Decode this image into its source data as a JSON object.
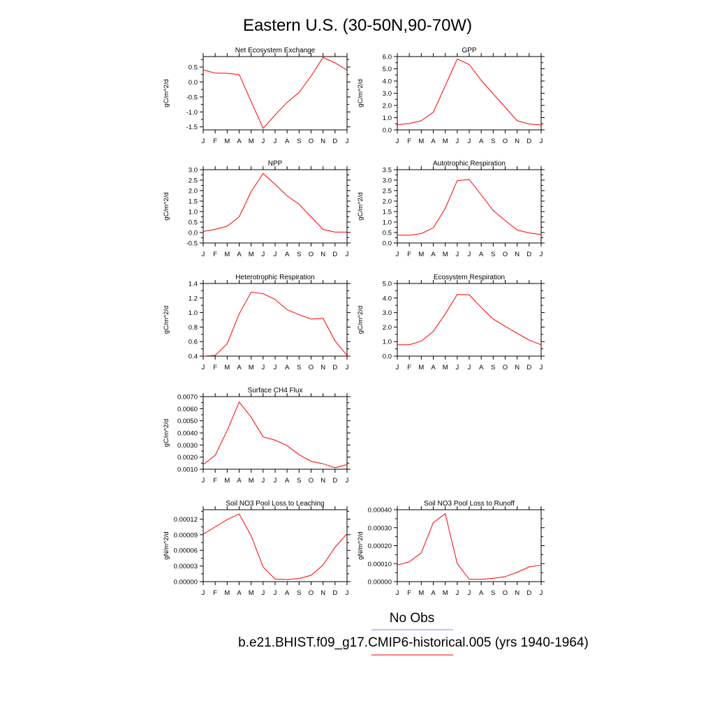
{
  "page": {
    "title": "Eastern U.S. (30-50N,90-70W)"
  },
  "legend": [
    {
      "label": "No Obs",
      "color": "#8080ff"
    },
    {
      "label": "b.e21.BHIST.f09_g17.CMIP6-historical.005 (yrs 1940-1964)",
      "color": "#ff0000"
    }
  ],
  "chart_data": [
    {
      "type": "line",
      "title": "Net Ecosystem Exchange",
      "ylabel": "gC/m^2/d",
      "categories": [
        "J",
        "F",
        "M",
        "A",
        "M",
        "J",
        "J",
        "A",
        "S",
        "O",
        "N",
        "D",
        "J"
      ],
      "ylim": [
        -1.6,
        0.85
      ],
      "yticks": [
        "0.5",
        "0.0",
        "-0.5",
        "-1.0",
        "-1.5"
      ],
      "yticks_values": [
        0.5,
        0.0,
        -0.5,
        -1.0,
        -1.5
      ],
      "series": [
        {
          "color": "#ff0000",
          "values": [
            0.4,
            0.3,
            0.29,
            0.25,
            -0.65,
            -1.55,
            -1.1,
            -0.68,
            -0.35,
            0.2,
            0.82,
            0.64,
            0.4
          ]
        }
      ]
    },
    {
      "type": "line",
      "title": "GPP",
      "ylabel": "gC/m^2/d",
      "categories": [
        "J",
        "F",
        "M",
        "A",
        "M",
        "J",
        "J",
        "A",
        "S",
        "O",
        "N",
        "D",
        "J"
      ],
      "ylim": [
        0.0,
        6.0
      ],
      "yticks": [
        "6.0",
        "5.0",
        "4.0",
        "3.0",
        "2.0",
        "1.0",
        "0.0"
      ],
      "yticks_values": [
        6.0,
        5.0,
        4.0,
        3.0,
        2.0,
        1.0,
        0.0
      ],
      "series": [
        {
          "color": "#ff0000",
          "values": [
            0.42,
            0.52,
            0.75,
            1.45,
            3.6,
            5.8,
            5.35,
            4.05,
            2.95,
            1.85,
            0.75,
            0.48,
            0.4
          ]
        }
      ]
    },
    {
      "type": "line",
      "title": "NPP",
      "ylabel": "gC/m^2/d",
      "categories": [
        "J",
        "F",
        "M",
        "A",
        "M",
        "J",
        "J",
        "A",
        "S",
        "O",
        "N",
        "D",
        "J"
      ],
      "ylim": [
        -0.5,
        3.0
      ],
      "yticks": [
        "3.0",
        "2.5",
        "2.0",
        "1.5",
        "1.0",
        "0.5",
        "0.0",
        "-0.5"
      ],
      "yticks_values": [
        3.0,
        2.5,
        2.0,
        1.5,
        1.0,
        0.5,
        0.0,
        -0.5
      ],
      "series": [
        {
          "color": "#ff0000",
          "values": [
            0.05,
            0.15,
            0.3,
            0.75,
            1.95,
            2.82,
            2.3,
            1.75,
            1.35,
            0.75,
            0.15,
            0.02,
            0.02
          ]
        }
      ]
    },
    {
      "type": "line",
      "title": "Autotrophic Respiration",
      "ylabel": "gC/m^2/d",
      "categories": [
        "J",
        "F",
        "M",
        "A",
        "M",
        "J",
        "J",
        "A",
        "S",
        "O",
        "N",
        "D",
        "J"
      ],
      "ylim": [
        0.0,
        3.5
      ],
      "yticks": [
        "3.5",
        "3.0",
        "2.5",
        "2.0",
        "1.5",
        "1.0",
        "0.5",
        "0.0"
      ],
      "yticks_values": [
        3.5,
        3.0,
        2.5,
        2.0,
        1.5,
        1.0,
        0.5,
        0.0
      ],
      "series": [
        {
          "color": "#ff0000",
          "values": [
            0.38,
            0.37,
            0.45,
            0.72,
            1.65,
            2.98,
            3.03,
            2.3,
            1.55,
            1.07,
            0.62,
            0.48,
            0.4
          ]
        }
      ]
    },
    {
      "type": "line",
      "title": "Heterotrophic Respiration",
      "ylabel": "gC/m^2/d",
      "categories": [
        "J",
        "F",
        "M",
        "A",
        "M",
        "J",
        "J",
        "A",
        "S",
        "O",
        "N",
        "D",
        "J"
      ],
      "ylim": [
        0.4,
        1.4
      ],
      "yticks": [
        "1.4",
        "1.2",
        "1.0",
        "0.8",
        "0.6",
        "0.4"
      ],
      "yticks_values": [
        1.4,
        1.2,
        1.0,
        0.8,
        0.6,
        0.4
      ],
      "series": [
        {
          "color": "#ff0000",
          "values": [
            0.4,
            0.41,
            0.57,
            0.98,
            1.28,
            1.26,
            1.18,
            1.04,
            0.97,
            0.91,
            0.92,
            0.61,
            0.41
          ]
        }
      ]
    },
    {
      "type": "line",
      "title": "Ecosystem Respiration",
      "ylabel": "gC/m^2/d",
      "categories": [
        "J",
        "F",
        "M",
        "A",
        "M",
        "J",
        "J",
        "A",
        "S",
        "O",
        "N",
        "D",
        "J"
      ],
      "ylim": [
        0.0,
        5.0
      ],
      "yticks": [
        "5.0",
        "4.0",
        "3.0",
        "2.0",
        "1.0",
        "0.0"
      ],
      "yticks_values": [
        5.0,
        4.0,
        3.0,
        2.0,
        1.0,
        0.0
      ],
      "series": [
        {
          "color": "#ff0000",
          "values": [
            0.78,
            0.78,
            1.03,
            1.7,
            2.9,
            4.25,
            4.22,
            3.35,
            2.55,
            2.05,
            1.57,
            1.1,
            0.78
          ]
        }
      ]
    },
    {
      "type": "line",
      "title": "Surface CH4 Flux",
      "ylabel": "gC/m^2/d",
      "categories": [
        "J",
        "F",
        "M",
        "A",
        "M",
        "J",
        "J",
        "A",
        "S",
        "O",
        "N",
        "D",
        "J"
      ],
      "ylim": [
        0.001,
        0.007
      ],
      "yticks": [
        "0.0070",
        "0.0060",
        "0.0050",
        "0.0040",
        "0.0030",
        "0.0020",
        "0.0010"
      ],
      "yticks_values": [
        0.007,
        0.006,
        0.005,
        0.004,
        0.003,
        0.002,
        0.001
      ],
      "series": [
        {
          "color": "#ff0000",
          "values": [
            0.00138,
            0.00215,
            0.0042,
            0.00655,
            0.0053,
            0.00368,
            0.0034,
            0.00295,
            0.0022,
            0.00165,
            0.00145,
            0.00112,
            0.00138
          ]
        }
      ]
    },
    {
      "type": "line",
      "title": "Soil NO3 Pool Loss to Leaching",
      "ylabel": "gN/m^2/d",
      "categories": [
        "J",
        "F",
        "M",
        "A",
        "M",
        "J",
        "J",
        "A",
        "S",
        "O",
        "N",
        "D",
        "J"
      ],
      "ylim": [
        0.0,
        0.000138
      ],
      "yticks": [
        "0.00012",
        "0.00009",
        "0.00006",
        "0.00003",
        "0.00000"
      ],
      "yticks_values": [
        0.00012,
        9e-05,
        6e-05,
        3e-05,
        0.0
      ],
      "series": [
        {
          "color": "#ff0000",
          "values": [
            9.1e-05,
            0.000105,
            0.000119,
            0.00013,
            8.8e-05,
            2.8e-05,
            5e-06,
            4e-06,
            6e-06,
            1.2e-05,
            3.2e-05,
            6.6e-05,
            9.2e-05
          ]
        }
      ]
    },
    {
      "type": "line",
      "title": "Soil NO3 Pool Loss to Runoff",
      "ylabel": "gN/m^2/d",
      "categories": [
        "J",
        "F",
        "M",
        "A",
        "M",
        "J",
        "J",
        "A",
        "S",
        "O",
        "N",
        "D",
        "J"
      ],
      "ylim": [
        0.0,
        0.0004
      ],
      "yticks": [
        "0.00040",
        "0.00030",
        "0.00020",
        "0.00010",
        "0.00000"
      ],
      "yticks_values": [
        0.0004,
        0.0003,
        0.0002,
        0.0001,
        0.0
      ],
      "series": [
        {
          "color": "#ff0000",
          "values": [
            9.2e-05,
            0.00011,
            0.00016,
            0.000328,
            0.000378,
            0.0001,
            1.4e-05,
            1.3e-05,
            1.8e-05,
            2.8e-05,
            5.2e-05,
            8.2e-05,
            9.2e-05
          ]
        }
      ]
    }
  ]
}
